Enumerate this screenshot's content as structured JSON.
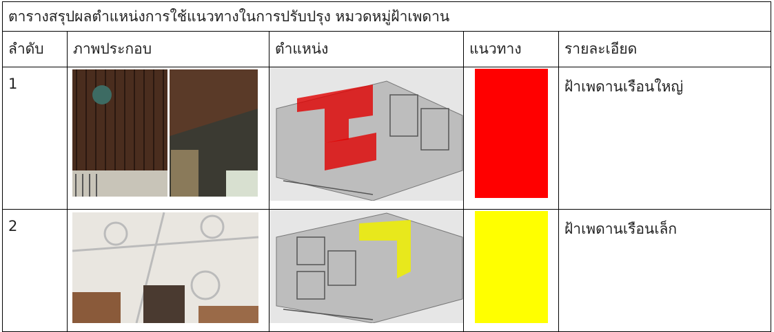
{
  "table": {
    "title": "ตารางสรุปผลตำแหน่งการใช้แนวทางในการปรับปรุง หมวดหมู่ฝ้าเพดาน",
    "header": [
      "ลำดับ",
      "ภาพประกอบ",
      "ตำแหน่ง",
      "แนวทาง",
      "รายละเอียด"
    ],
    "rows": [
      {
        "number": 1,
        "guideline_color": "#ff0000",
        "detail": "ฝ้าเพดานเรือนใหญ่"
      },
      {
        "number": 2,
        "guideline_color": "#ffff00",
        "detail": "ฝ้าเพดานเรือนเล็ก"
      }
    ]
  }
}
